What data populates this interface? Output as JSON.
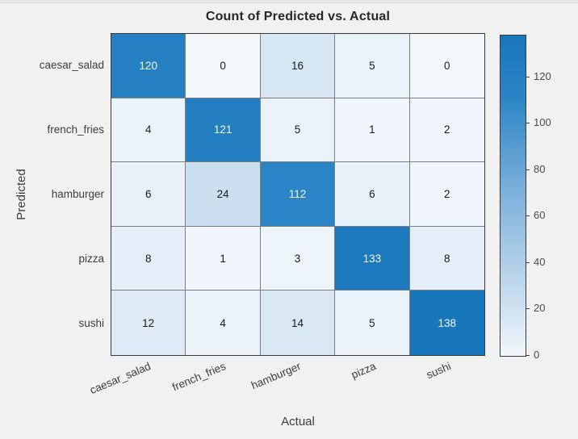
{
  "figure": {
    "background": "#f1f1f1",
    "grid_line_color": "#7d7d7d",
    "border_color": "#3a3a3a"
  },
  "chart_data": {
    "type": "heatmap",
    "title": "Count of Predicted vs. Actual",
    "xlabel": "Actual",
    "ylabel": "Predicted",
    "x_categories": [
      "caesar_salad",
      "french_fries",
      "hamburger",
      "pizza",
      "sushi"
    ],
    "y_categories": [
      "caesar_salad",
      "french_fries",
      "hamburger",
      "pizza",
      "sushi"
    ],
    "values": [
      [
        120,
        0,
        16,
        5,
        0
      ],
      [
        4,
        121,
        5,
        1,
        2
      ],
      [
        6,
        24,
        112,
        6,
        2
      ],
      [
        8,
        1,
        3,
        133,
        8
      ],
      [
        12,
        4,
        14,
        5,
        138
      ]
    ],
    "colorbar": {
      "min": 0,
      "max": 138,
      "ticks": [
        0,
        20,
        40,
        60,
        80,
        100,
        120
      ],
      "position": "right"
    },
    "colormap_stops": [
      {
        "t": 0.0,
        "color": "#f2f7fc"
      },
      {
        "t": 0.12,
        "color": "#d6e5f3"
      },
      {
        "t": 0.25,
        "color": "#b9d4ea"
      },
      {
        "t": 0.5,
        "color": "#7fb2dc"
      },
      {
        "t": 0.81,
        "color": "#2b84c5"
      },
      {
        "t": 1.0,
        "color": "#1876bb"
      }
    ],
    "cell_text_dark": "#1a1a1a",
    "cell_text_light": "#f5fafd",
    "grid": true,
    "legend": "none"
  }
}
